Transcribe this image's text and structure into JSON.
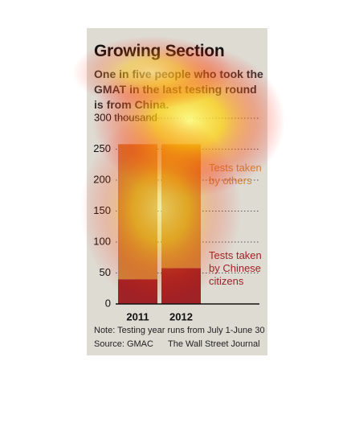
{
  "chart_data": {
    "type": "stacked-bar",
    "title": "Growing Section",
    "subtitle": "One in five people who took the GMAT in the last testing round is from China.",
    "categories": [
      "2011",
      "2012"
    ],
    "series": [
      {
        "name": "Tests taken by Chinese citizens",
        "color": "#9e2226",
        "values": [
          40,
          58
        ]
      },
      {
        "name": "Tests taken by others",
        "color": "#c9863e",
        "values": [
          218,
          200
        ]
      }
    ],
    "ylim": [
      0,
      300
    ],
    "yticks": [
      0,
      50,
      100,
      150,
      200,
      250,
      {
        "value": 300,
        "label": "300 thousand"
      }
    ],
    "grid": true,
    "note": "Note: Testing year runs from July 1-June 30",
    "source": "Source: GMAC",
    "credit": "The Wall Street Journal"
  }
}
